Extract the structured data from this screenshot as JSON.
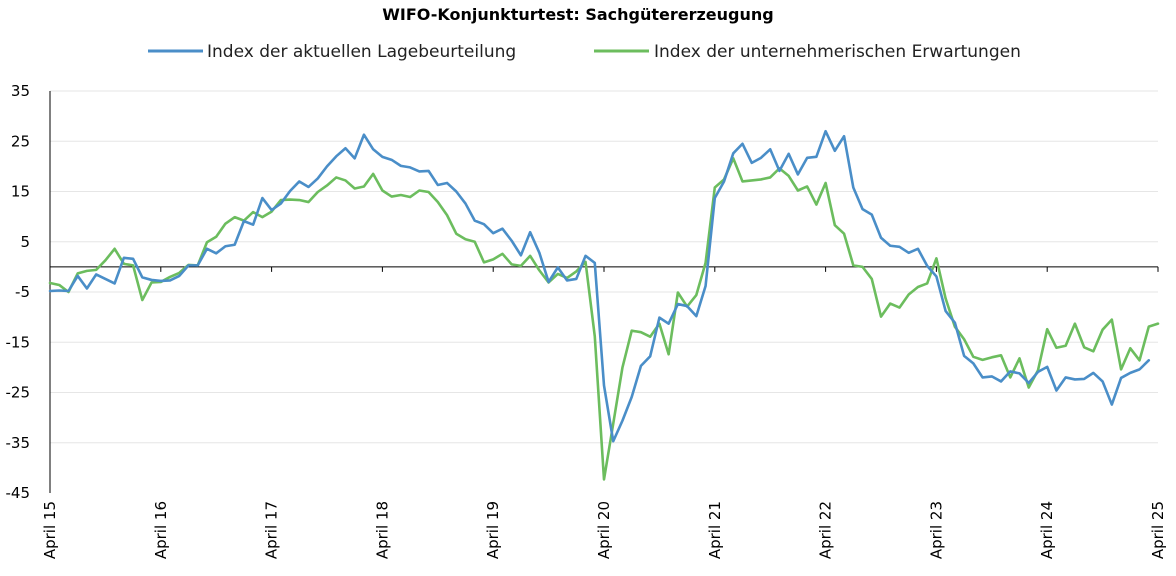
{
  "chart_data": {
    "type": "line",
    "title": "WIFO-Konjunkturtest: Sachgütererzeugung",
    "xlabel": "",
    "ylabel": "",
    "ylim": [
      -45,
      35
    ],
    "yticks": [
      35,
      25,
      15,
      5,
      -5,
      -15,
      -25,
      -35,
      -45
    ],
    "xticks": [
      {
        "label": "April 15",
        "t": 0
      },
      {
        "label": "April 16",
        "t": 12
      },
      {
        "label": "April 17",
        "t": 24
      },
      {
        "label": "April 18",
        "t": 36
      },
      {
        "label": "April 19",
        "t": 48
      },
      {
        "label": "April 20",
        "t": 60
      },
      {
        "label": "April 21",
        "t": 72
      },
      {
        "label": "April 22",
        "t": 84
      },
      {
        "label": "April 23",
        "t": 96
      },
      {
        "label": "April 24",
        "t": 108
      },
      {
        "label": "April 25",
        "t": 120
      }
    ],
    "zero_line": true,
    "grid": true,
    "legend_position": "top",
    "series": [
      {
        "name": "Index der aktuellen Lagebeurteilung",
        "color": "#4a8ec8",
        "values": [
          -4.8,
          -4.7,
          -4.8,
          -1.8,
          -4.3,
          -1.5,
          -2.4,
          -3.3,
          1.8,
          1.6,
          -2.1,
          -2.6,
          -2.8,
          -2.7,
          -1.8,
          0.3,
          0.3,
          3.6,
          2.7,
          4.1,
          4.4,
          9.1,
          8.4,
          13.7,
          11.3,
          12.6,
          15.1,
          17.0,
          15.9,
          17.6,
          20.0,
          22.0,
          23.6,
          21.6,
          26.3,
          23.4,
          21.9,
          21.3,
          20.1,
          19.8,
          19.0,
          19.1,
          16.3,
          16.7,
          15.0,
          12.6,
          9.2,
          8.5,
          6.7,
          7.6,
          5.2,
          2.3,
          6.9,
          2.8,
          -3.0,
          -0.1,
          -2.7,
          -2.4,
          2.2,
          0.8,
          -23.6,
          -34.7,
          -30.6,
          -25.9,
          -19.7,
          -17.8,
          -10.1,
          -11.3,
          -7.4,
          -7.8,
          -9.8,
          -3.8,
          13.7,
          17.0,
          22.6,
          24.5,
          20.7,
          21.7,
          23.4,
          19.1,
          22.5,
          18.4,
          21.7,
          21.9,
          27.0,
          23.1,
          26.0,
          15.8,
          11.5,
          10.4,
          5.8,
          4.2,
          4.0,
          2.8,
          3.6,
          0.2,
          -1.9,
          -8.8,
          -11.1,
          -17.7,
          -19.2,
          -22.0,
          -21.8,
          -22.8,
          -20.8,
          -21.2,
          -23.1,
          -20.9,
          -19.9,
          -24.6,
          -22.0,
          -22.4,
          -22.3,
          -21.1,
          -22.8,
          -27.4,
          -22.1,
          -21.1,
          -20.4,
          -18.6
        ]
      },
      {
        "name": "Index der unternehmerischen Erwartungen",
        "color": "#6cbd5e",
        "values": [
          -3.2,
          -3.6,
          -5.0,
          -1.3,
          -0.8,
          -0.6,
          1.3,
          3.6,
          0.6,
          0.3,
          -6.6,
          -3.1,
          -3.0,
          -2.0,
          -1.2,
          0.4,
          0.3,
          4.9,
          6.0,
          8.6,
          9.9,
          9.2,
          10.9,
          9.9,
          11.0,
          13.3,
          13.4,
          13.3,
          12.9,
          14.9,
          16.2,
          17.8,
          17.2,
          15.6,
          16.0,
          18.5,
          15.2,
          14.0,
          14.3,
          13.9,
          15.2,
          14.9,
          12.9,
          10.3,
          6.6,
          5.5,
          5.0,
          0.9,
          1.5,
          2.6,
          0.5,
          0.2,
          2.2,
          -0.7,
          -3.1,
          -1.4,
          -2.2,
          -0.9,
          1.0,
          -13.8,
          -42.3,
          -31.2,
          -20.0,
          -12.7,
          -13.0,
          -13.9,
          -11.3,
          -17.4,
          -5.1,
          -7.9,
          -5.6,
          0.8,
          15.8,
          17.4,
          21.6,
          17.0,
          17.2,
          17.4,
          17.8,
          19.6,
          18.1,
          15.2,
          16.0,
          12.4,
          16.7,
          8.3,
          6.6,
          0.3,
          0.0,
          -2.4,
          -9.9,
          -7.3,
          -8.1,
          -5.5,
          -4.0,
          -3.3,
          1.7,
          -6.3,
          -11.9,
          -14.4,
          -17.9,
          -18.5,
          -18.0,
          -17.6,
          -22.0,
          -18.2,
          -24.0,
          -20.6,
          -12.4,
          -16.1,
          -15.7,
          -11.3,
          -16.0,
          -16.8,
          -12.5,
          -10.5,
          -20.4,
          -16.2,
          -18.6,
          -11.9,
          -11.3
        ]
      }
    ]
  }
}
